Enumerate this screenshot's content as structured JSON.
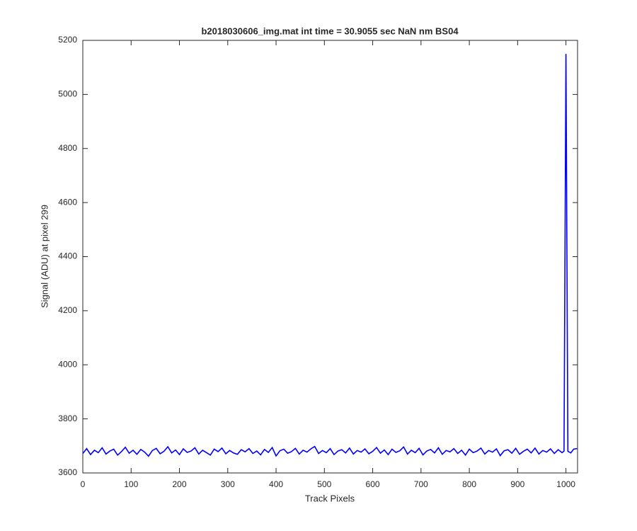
{
  "chart_data": {
    "type": "line",
    "title": "b2018030606_img.mat int time = 30.9055 sec  NaN nm BS04",
    "x_label": "Track Pixels",
    "y_label": "Signal (ADU) at pixel 299",
    "xlim": [
      0,
      1024
    ],
    "ylim": [
      3600,
      5200
    ],
    "xticks": [
      0,
      100,
      200,
      300,
      400,
      500,
      600,
      700,
      800,
      900,
      1000
    ],
    "yticks": [
      3600,
      3800,
      4000,
      4200,
      4400,
      4600,
      4800,
      5000,
      5200
    ],
    "grid": false,
    "x": [
      0,
      8,
      16,
      24,
      32,
      40,
      48,
      56,
      64,
      72,
      80,
      88,
      96,
      104,
      112,
      120,
      128,
      136,
      144,
      152,
      160,
      168,
      176,
      184,
      192,
      200,
      208,
      216,
      224,
      232,
      240,
      248,
      256,
      264,
      272,
      280,
      288,
      296,
      304,
      312,
      320,
      328,
      336,
      344,
      352,
      360,
      368,
      376,
      384,
      392,
      400,
      408,
      416,
      424,
      432,
      440,
      448,
      456,
      464,
      472,
      480,
      488,
      496,
      504,
      512,
      520,
      528,
      536,
      544,
      552,
      560,
      568,
      576,
      584,
      592,
      600,
      608,
      616,
      624,
      632,
      640,
      648,
      656,
      664,
      672,
      680,
      688,
      696,
      704,
      712,
      720,
      728,
      736,
      744,
      752,
      760,
      768,
      776,
      784,
      792,
      800,
      808,
      816,
      824,
      832,
      840,
      848,
      856,
      864,
      872,
      880,
      888,
      896,
      904,
      912,
      920,
      928,
      936,
      944,
      952,
      960,
      968,
      976,
      984,
      992,
      996,
      1000,
      1004,
      1010,
      1016,
      1023
    ],
    "series": [
      {
        "name": "signal",
        "color": "#0000ff",
        "values": [
          3672,
          3690,
          3668,
          3684,
          3675,
          3693,
          3670,
          3681,
          3688,
          3666,
          3679,
          3695,
          3673,
          3684,
          3669,
          3687,
          3677,
          3662,
          3683,
          3691,
          3671,
          3680,
          3697,
          3674,
          3685,
          3668,
          3689,
          3676,
          3681,
          3693,
          3670,
          3684,
          3675,
          3666,
          3688,
          3679,
          3692,
          3671,
          3683,
          3674,
          3669,
          3686,
          3678,
          3690,
          3672,
          3681,
          3667,
          3687,
          3676,
          3694,
          3663,
          3682,
          3688,
          3673,
          3679,
          3691,
          3670,
          3684,
          3677,
          3689,
          3698,
          3672,
          3683,
          3675,
          3690,
          3668,
          3681,
          3686,
          3674,
          3692,
          3670,
          3683,
          3677,
          3689,
          3671,
          3680,
          3694,
          3673,
          3685,
          3668,
          3688,
          3676,
          3682,
          3696,
          3670,
          3684,
          3675,
          3691,
          3667,
          3681,
          3687,
          3674,
          3693,
          3669,
          3683,
          3678,
          3690,
          3672,
          3684,
          3666,
          3688,
          3675,
          3681,
          3692,
          3670,
          3683,
          3677,
          3689,
          3664,
          3682,
          3686,
          3673,
          3691,
          3669,
          3680,
          3688,
          3674,
          3692,
          3670,
          3683,
          3677,
          3689,
          3672,
          3686,
          3675,
          3681,
          5150,
          3680,
          3674,
          3688,
          3690
        ]
      }
    ]
  }
}
